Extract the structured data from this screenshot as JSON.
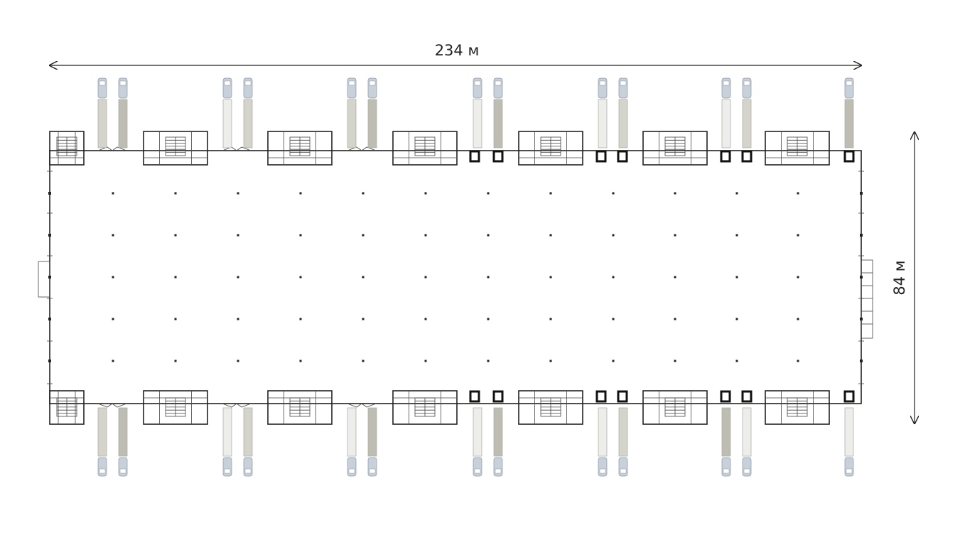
{
  "dimensions": {
    "width_label": "234 м",
    "depth_label": "84 м"
  },
  "layout": {
    "columns_across": 13,
    "column_rows": 5,
    "office_blocks_per_side": 7,
    "dock_pairs_per_side": 6,
    "single_dock_at_end": true
  },
  "truck_colors": {
    "trailer_light": "#ededeb",
    "trailer_mid": "#d4d4cc",
    "trailer_dark": "#bdbdb3",
    "cab": "#c8d0da"
  }
}
